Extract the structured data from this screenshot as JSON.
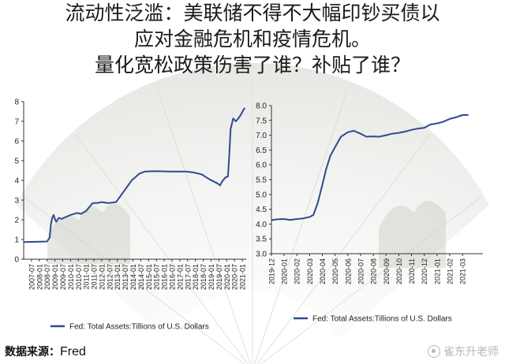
{
  "title": {
    "lines": [
      "流动性泛滥：美联储不得不大幅印钞买债以",
      "应对金融危机和疫情危机。",
      "量化宽松政策伤害了谁？补贴了谁？"
    ]
  },
  "source": {
    "label": "数据来源：",
    "value": "Fred"
  },
  "watermark": {
    "text": "雀东升老师"
  },
  "colors": {
    "line": "#2e4b8e",
    "axis": "#333333",
    "text": "#222222"
  },
  "chart_data": [
    {
      "type": "line",
      "title": "",
      "xlabel": "",
      "ylabel": "",
      "ylim": [
        0,
        8
      ],
      "yticks": [
        "0",
        "1",
        "2",
        "3",
        "4",
        "5",
        "6",
        "7",
        "8"
      ],
      "xlim": [
        2007.0,
        2021.25
      ],
      "xticks": [
        "2007-07",
        "2008-01",
        "2008-07",
        "2009-01",
        "2009-07",
        "2010-01",
        "2010-07",
        "2011-01",
        "2011-07",
        "2012-01",
        "2012-07",
        "2013-01",
        "2013-07",
        "2014-01",
        "2014-07",
        "2015-01",
        "2015-07",
        "2016-01",
        "2016-07",
        "2017-01",
        "2017-07",
        "2018-01",
        "2018-07",
        "2019-01",
        "2019-07",
        "2020-01",
        "2020-07",
        "2021-01"
      ],
      "legend": "bottom-left",
      "grid": false,
      "series": [
        {
          "name": "Fed: Total Assets:Tillions of U.S. Dollars",
          "points": [
            [
              "2007-01",
              0.87
            ],
            [
              "2007-07",
              0.88
            ],
            [
              "2008-01",
              0.89
            ],
            [
              "2008-07",
              0.9
            ],
            [
              "2008-09",
              1.1
            ],
            [
              "2008-10",
              1.8
            ],
            [
              "2008-11",
              2.1
            ],
            [
              "2008-12",
              2.25
            ],
            [
              "2009-01",
              2.05
            ],
            [
              "2009-02",
              1.9
            ],
            [
              "2009-04",
              2.1
            ],
            [
              "2009-06",
              2.05
            ],
            [
              "2009-08",
              2.1
            ],
            [
              "2010-01",
              2.25
            ],
            [
              "2010-06",
              2.35
            ],
            [
              "2010-09",
              2.3
            ],
            [
              "2011-01",
              2.45
            ],
            [
              "2011-06",
              2.85
            ],
            [
              "2011-09",
              2.85
            ],
            [
              "2012-01",
              2.9
            ],
            [
              "2012-06",
              2.85
            ],
            [
              "2012-12",
              2.9
            ],
            [
              "2013-06",
              3.45
            ],
            [
              "2013-12",
              4.0
            ],
            [
              "2014-06",
              4.35
            ],
            [
              "2014-10",
              4.45
            ],
            [
              "2015-06",
              4.47
            ],
            [
              "2016-06",
              4.45
            ],
            [
              "2017-06",
              4.45
            ],
            [
              "2017-12",
              4.4
            ],
            [
              "2018-06",
              4.3
            ],
            [
              "2018-12",
              4.05
            ],
            [
              "2019-06",
              3.85
            ],
            [
              "2019-08",
              3.75
            ],
            [
              "2019-09",
              3.9
            ],
            [
              "2019-12",
              4.15
            ],
            [
              "2020-02",
              4.2
            ],
            [
              "2020-03",
              5.3
            ],
            [
              "2020-04",
              6.6
            ],
            [
              "2020-06",
              7.15
            ],
            [
              "2020-08",
              7.0
            ],
            [
              "2020-10",
              7.15
            ],
            [
              "2020-12",
              7.35
            ],
            [
              "2021-02",
              7.6
            ],
            [
              "2021-03",
              7.68
            ]
          ]
        }
      ]
    },
    {
      "type": "line",
      "title": "",
      "xlabel": "",
      "ylabel": "",
      "ylim": [
        3.0,
        8.0
      ],
      "yticks": [
        "3.0",
        "3.5",
        "4.0",
        "4.5",
        "5.0",
        "5.5",
        "6.0",
        "6.5",
        "7.0",
        "7.5",
        "8.0"
      ],
      "xlim": [
        2019.917,
        2021.3
      ],
      "xticks": [
        "2019-12",
        "2020-01",
        "2020-02",
        "2020-03",
        "2020-04",
        "2020-05",
        "2020-06",
        "2020-07",
        "2020-08",
        "2020-09",
        "2020-10",
        "2020-11",
        "2020-12",
        "2021-01",
        "2021-02",
        "2021-03"
      ],
      "legend": "bottom-left",
      "grid": false,
      "series": [
        {
          "name": "Fed: Total Assets:Tillions of U.S. Dollars",
          "points": [
            [
              "2019-12-01",
              4.13
            ],
            [
              "2019-12-15",
              4.16
            ],
            [
              "2020-01-01",
              4.17
            ],
            [
              "2020-01-15",
              4.14
            ],
            [
              "2020-02-01",
              4.17
            ],
            [
              "2020-02-15",
              4.19
            ],
            [
              "2020-03-01",
              4.24
            ],
            [
              "2020-03-10",
              4.31
            ],
            [
              "2020-03-20",
              4.7
            ],
            [
              "2020-03-31",
              5.3
            ],
            [
              "2020-04-10",
              5.85
            ],
            [
              "2020-04-20",
              6.3
            ],
            [
              "2020-05-01",
              6.6
            ],
            [
              "2020-05-15",
              6.95
            ],
            [
              "2020-06-01",
              7.1
            ],
            [
              "2020-06-15",
              7.15
            ],
            [
              "2020-07-01",
              7.05
            ],
            [
              "2020-07-15",
              6.95
            ],
            [
              "2020-08-01",
              6.96
            ],
            [
              "2020-08-15",
              6.95
            ],
            [
              "2020-09-01",
              7.0
            ],
            [
              "2020-09-15",
              7.05
            ],
            [
              "2020-10-01",
              7.08
            ],
            [
              "2020-10-15",
              7.12
            ],
            [
              "2020-11-01",
              7.18
            ],
            [
              "2020-11-15",
              7.22
            ],
            [
              "2020-12-01",
              7.25
            ],
            [
              "2020-12-15",
              7.36
            ],
            [
              "2021-01-01",
              7.4
            ],
            [
              "2021-01-15",
              7.45
            ],
            [
              "2021-02-01",
              7.55
            ],
            [
              "2021-02-15",
              7.6
            ],
            [
              "2021-03-01",
              7.68
            ],
            [
              "2021-03-15",
              7.68
            ]
          ]
        }
      ]
    }
  ]
}
